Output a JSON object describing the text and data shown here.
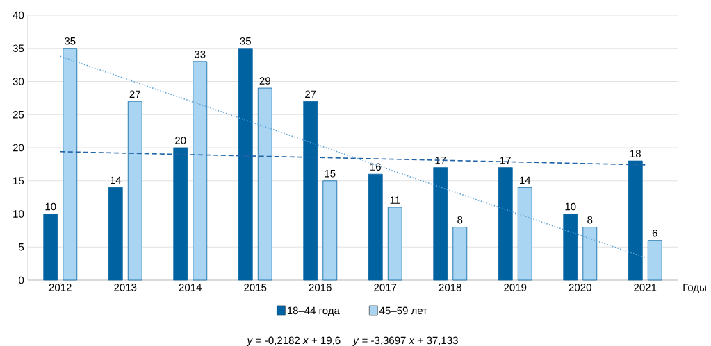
{
  "chart_data": {
    "type": "bar",
    "xlabel": "Годы",
    "categories": [
      "2012",
      "2013",
      "2014",
      "2015",
      "2016",
      "2017",
      "2018",
      "2019",
      "2020",
      "2021"
    ],
    "series": [
      {
        "name": "18–44 года",
        "color": "#0062a0",
        "values": [
          10,
          14,
          20,
          35,
          27,
          16,
          17,
          17,
          10,
          18
        ],
        "value_labels": [
          "10",
          "14",
          "20",
          "35",
          "27",
          "16",
          "17",
          "17",
          "10",
          "18"
        ]
      },
      {
        "name": "45–59 лет",
        "color": "#a9d5f2",
        "values": [
          35,
          27,
          33,
          29,
          15,
          11,
          8,
          14,
          8,
          6
        ],
        "value_labels": [
          "35",
          "27",
          "33",
          "29",
          "15",
          "11",
          "8",
          "14",
          "8",
          "6"
        ]
      },
      {
        "type": "line",
        "color": "#1f63a8",
        "line_style": "dashed",
        "values": [
          19.4,
          null,
          null,
          null,
          null,
          null,
          null,
          null,
          null,
          17.4
        ]
      },
      {
        "type": "line",
        "color": "#5ba3d6",
        "line_style": "dotted",
        "values": [
          33.8,
          null,
          null,
          null,
          null,
          null,
          null,
          null,
          null,
          3.4
        ]
      }
    ],
    "ylim": [
      0,
      40
    ],
    "yticks": [
      0,
      5,
      10,
      15,
      20,
      25,
      30,
      35,
      40
    ],
    "grid": "y",
    "legend": "bottom",
    "annotations": [
      "*y* = -0,2182 *x* + 19,6",
      "*y* = -3,3697 *x* + 37,133"
    ]
  }
}
